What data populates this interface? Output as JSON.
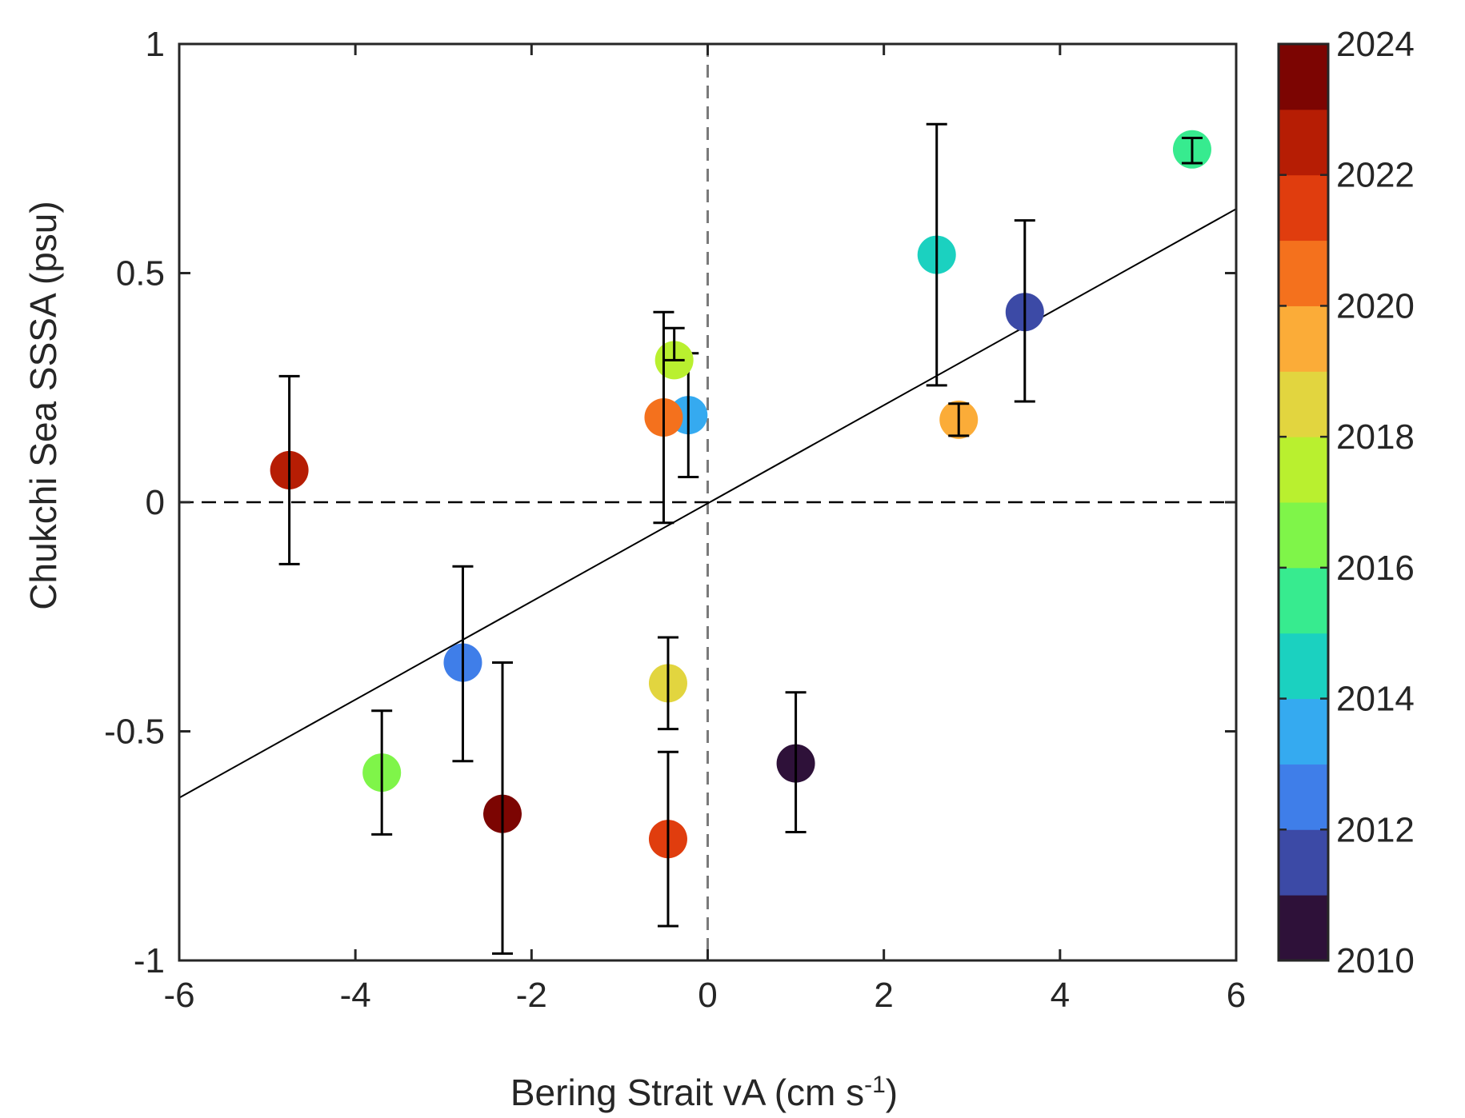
{
  "chart_data": {
    "type": "scatter",
    "title": "",
    "xlabel": "Bering Strait vA (cm s",
    "xlabel_sup": "-1",
    "xlabel_end": ")",
    "ylabel": "Chukchi Sea SSSA (psu)",
    "xlim": [
      -6,
      6
    ],
    "ylim": [
      -1,
      1
    ],
    "xticks": [
      -6,
      -4,
      -2,
      0,
      2,
      4,
      6
    ],
    "xtick_labels": [
      "-6",
      "-4",
      "-2",
      "0",
      "2",
      "4",
      "6"
    ],
    "yticks": [
      -1,
      -0.5,
      0,
      0.5,
      1
    ],
    "ytick_labels": [
      "-1",
      "-0.5",
      "0",
      "0.5",
      "1"
    ],
    "zero_lines": {
      "x": 0,
      "y": 0,
      "style": "dashed"
    },
    "regression_line": {
      "x": [
        -6,
        6
      ],
      "y": [
        -0.645,
        0.64
      ]
    },
    "colorbar": {
      "range": [
        2010,
        2024
      ],
      "tick_labels": [
        "2024",
        "2022",
        "2020",
        "2018",
        "2016",
        "2014",
        "2012",
        "2010"
      ],
      "tick_values": [
        2024,
        2022,
        2020,
        2018,
        2016,
        2014,
        2012,
        2010
      ],
      "colors": [
        "#2e1139",
        "#3c4aa6",
        "#3f7ee9",
        "#35aaf0",
        "#1bd1c0",
        "#37eb8f",
        "#7ff549",
        "#b9f02f",
        "#e2d53f",
        "#fbac38",
        "#f4711d",
        "#e03d0e",
        "#b61d04",
        "#7c0502"
      ]
    },
    "points": [
      {
        "year": 2010,
        "x": 1.0,
        "y": -0.57,
        "err_low": 0.15,
        "err_high": 0.155,
        "color": "#2e1139"
      },
      {
        "year": 2011,
        "x": 3.6,
        "y": 0.415,
        "err_low": 0.195,
        "err_high": 0.2,
        "color": "#3c4aa6"
      },
      {
        "year": 2012,
        "x": -2.78,
        "y": -0.35,
        "err_low": 0.215,
        "err_high": 0.21,
        "color": "#3f7ee9"
      },
      {
        "year": 2013,
        "x": -0.22,
        "y": 0.19,
        "err_low": 0.135,
        "err_high": 0.135,
        "color": "#35aaf0"
      },
      {
        "year": 2014,
        "x": 2.6,
        "y": 0.54,
        "err_low": 0.285,
        "err_high": 0.285,
        "color": "#1bd1c0"
      },
      {
        "year": 2015,
        "x": 5.5,
        "y": 0.77,
        "err_low": 0.03,
        "err_high": 0.025,
        "color": "#37eb8f"
      },
      {
        "year": 2016,
        "x": -3.7,
        "y": -0.59,
        "err_low": 0.135,
        "err_high": 0.135,
        "color": "#7ff549"
      },
      {
        "year": 2017,
        "x": -0.38,
        "y": 0.31,
        "err_low": 0.0,
        "err_high": 0.07,
        "color": "#b9f02f"
      },
      {
        "year": 2018,
        "x": -0.45,
        "y": -0.395,
        "err_low": 0.1,
        "err_high": 0.1,
        "color": "#e2d53f"
      },
      {
        "year": 2019,
        "x": 2.85,
        "y": 0.18,
        "err_low": 0.035,
        "err_high": 0.035,
        "color": "#fbac38"
      },
      {
        "year": 2020,
        "x": -0.5,
        "y": 0.185,
        "err_low": 0.23,
        "err_high": 0.23,
        "color": "#f4711d"
      },
      {
        "year": 2021,
        "x": -0.45,
        "y": -0.735,
        "err_low": 0.19,
        "err_high": 0.19,
        "color": "#e03d0e"
      },
      {
        "year": 2022,
        "x": -4.75,
        "y": 0.07,
        "err_low": 0.205,
        "err_high": 0.205,
        "color": "#b61d04"
      },
      {
        "year": 2023,
        "x": -2.33,
        "y": -0.68,
        "err_low": 0.305,
        "err_high": 0.33,
        "color": "#7c0502"
      }
    ]
  }
}
